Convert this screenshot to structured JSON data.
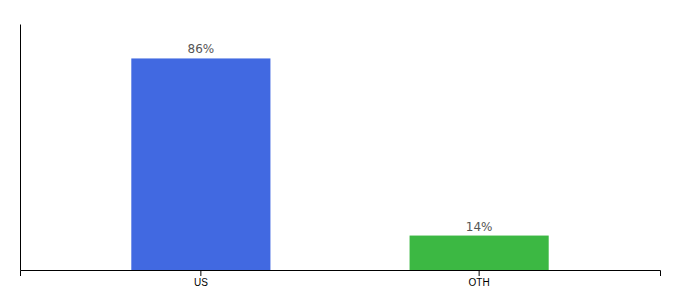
{
  "chart_data": {
    "type": "bar",
    "categories": [
      "US",
      "OTH"
    ],
    "values": [
      86,
      14
    ],
    "value_labels": [
      "86%",
      "14%"
    ],
    "colors": [
      "#4169E1",
      "#3CB843"
    ],
    "ylim": [
      0,
      100
    ],
    "data_labels": true,
    "tick_labels": "x",
    "grid": false
  }
}
